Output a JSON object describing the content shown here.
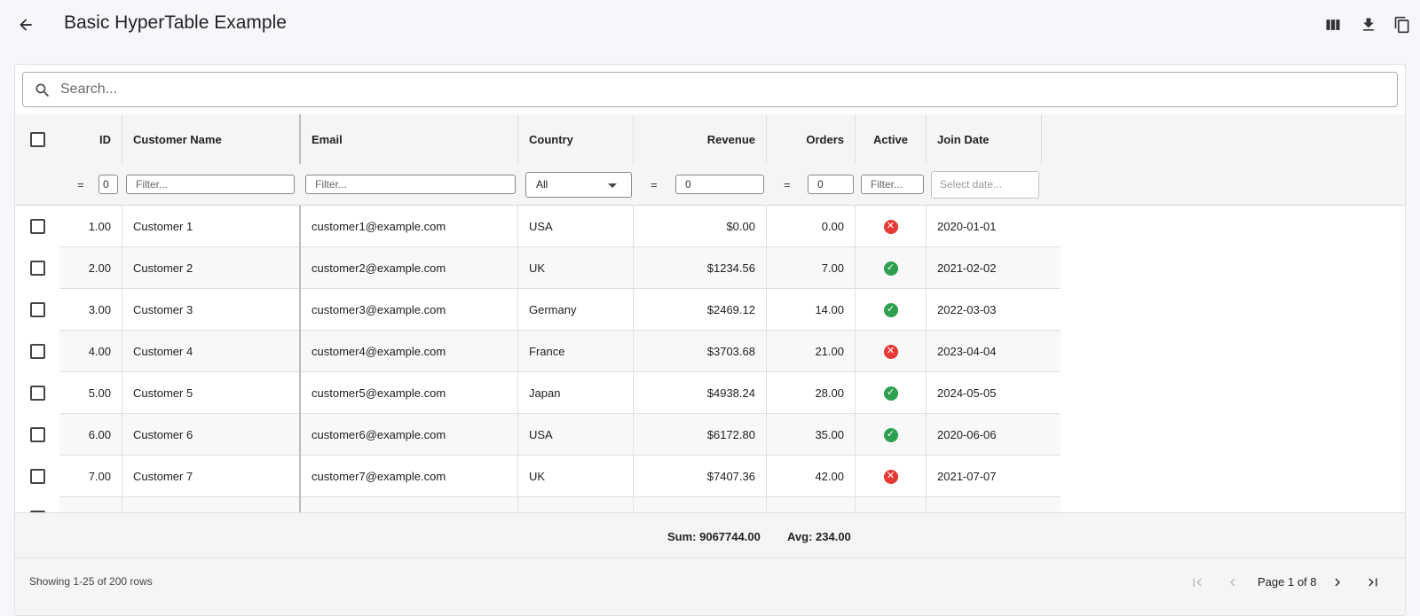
{
  "header": {
    "title": "Basic HyperTable Example",
    "icons": [
      "back-arrow-icon",
      "columns-icon",
      "download-icon",
      "copy-icon"
    ]
  },
  "search": {
    "placeholder": "Search..."
  },
  "columns": [
    {
      "key": "id",
      "label": "ID"
    },
    {
      "key": "name",
      "label": "Customer Name"
    },
    {
      "key": "email",
      "label": "Email"
    },
    {
      "key": "country",
      "label": "Country"
    },
    {
      "key": "revenue",
      "label": "Revenue"
    },
    {
      "key": "orders",
      "label": "Orders"
    },
    {
      "key": "active",
      "label": "Active"
    },
    {
      "key": "join",
      "label": "Join Date"
    }
  ],
  "filters": {
    "id_op": "=",
    "id_value": "0",
    "name_placeholder": "Filter...",
    "email_placeholder": "Filter...",
    "country_value": "All",
    "revenue_op": "=",
    "revenue_value": "0",
    "orders_op": "=",
    "orders_value": "0",
    "active_placeholder": "Filter...",
    "join_placeholder": "Select date..."
  },
  "rows": [
    {
      "id": "1.00",
      "name": "Customer 1",
      "email": "customer1@example.com",
      "country": "USA",
      "revenue": "$0.00",
      "orders": "0.00",
      "active": false,
      "join": "2020-01-01"
    },
    {
      "id": "2.00",
      "name": "Customer 2",
      "email": "customer2@example.com",
      "country": "UK",
      "revenue": "$1234.56",
      "orders": "7.00",
      "active": true,
      "join": "2021-02-02"
    },
    {
      "id": "3.00",
      "name": "Customer 3",
      "email": "customer3@example.com",
      "country": "Germany",
      "revenue": "$2469.12",
      "orders": "14.00",
      "active": true,
      "join": "2022-03-03"
    },
    {
      "id": "4.00",
      "name": "Customer 4",
      "email": "customer4@example.com",
      "country": "France",
      "revenue": "$3703.68",
      "orders": "21.00",
      "active": false,
      "join": "2023-04-04"
    },
    {
      "id": "5.00",
      "name": "Customer 5",
      "email": "customer5@example.com",
      "country": "Japan",
      "revenue": "$4938.24",
      "orders": "28.00",
      "active": true,
      "join": "2024-05-05"
    },
    {
      "id": "6.00",
      "name": "Customer 6",
      "email": "customer6@example.com",
      "country": "USA",
      "revenue": "$6172.80",
      "orders": "35.00",
      "active": true,
      "join": "2020-06-06"
    },
    {
      "id": "7.00",
      "name": "Customer 7",
      "email": "customer7@example.com",
      "country": "UK",
      "revenue": "$7407.36",
      "orders": "42.00",
      "active": false,
      "join": "2021-07-07"
    }
  ],
  "summary": {
    "sum": "Sum: 9067744.00",
    "avg": "Avg: 234.00"
  },
  "pagination": {
    "showing": "Showing 1-25 of 200 rows",
    "page_info": "Page 1 of 8"
  },
  "colors": {
    "active_true": "#2e9e4f",
    "active_false": "#e53935",
    "header_bg": "#f5f5f5"
  }
}
